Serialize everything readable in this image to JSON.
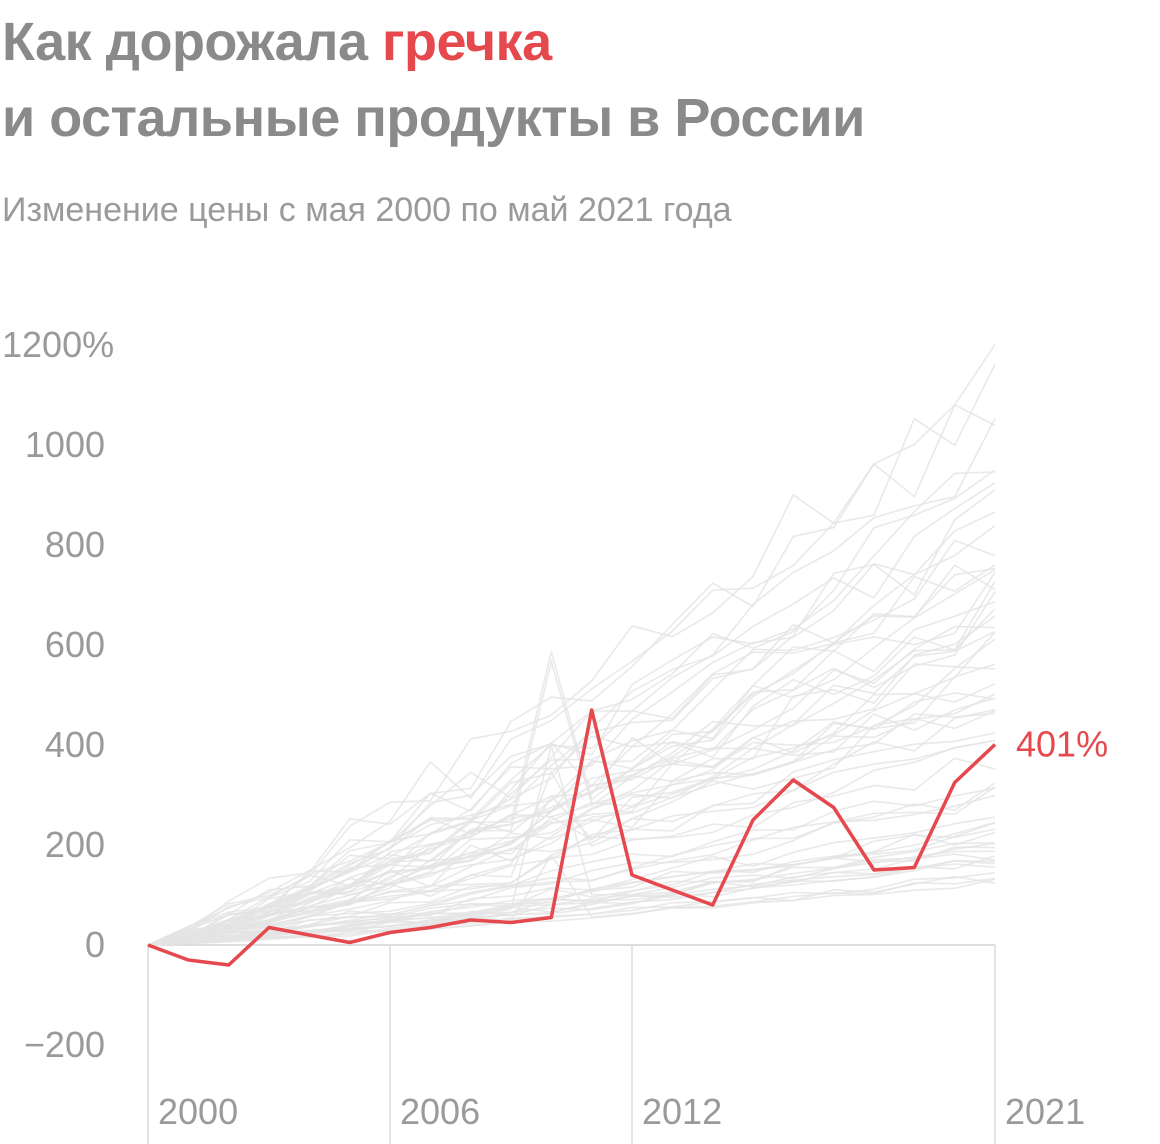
{
  "header": {
    "title_prefix": "Как дорожала",
    "title_highlight": "гречка",
    "title_line2": "и остальные продукты в России",
    "subtitle": "Изменение цены с мая 2000 по май 2021 года"
  },
  "colors": {
    "highlight": "#e5484d",
    "background_lines": "#e3e3e3",
    "text": "#8a8a8a"
  },
  "chart_data": {
    "type": "line",
    "title": "Как дорожала гречка и остальные продукты в России",
    "subtitle": "Изменение цены с мая 2000 по май 2021 года",
    "x": [
      2000,
      2001,
      2002,
      2003,
      2004,
      2005,
      2006,
      2007,
      2008,
      2009,
      2010,
      2011,
      2012,
      2013,
      2014,
      2015,
      2016,
      2017,
      2018,
      2019,
      2020,
      2021
    ],
    "xlim": [
      2000,
      2021
    ],
    "x_ticks": [
      "2000",
      "2006",
      "2012",
      "2021"
    ],
    "ylim": [
      -250,
      1200
    ],
    "y_ticks": [
      "1200%",
      "1000",
      "800",
      "600",
      "400",
      "200",
      "0",
      "−200"
    ],
    "y_tick_values": [
      1200,
      1000,
      800,
      600,
      400,
      200,
      0,
      -200
    ],
    "highlight_series": {
      "values": [
        0,
        -30,
        -40,
        35,
        20,
        5,
        25,
        35,
        50,
        45,
        55,
        470,
        140,
        110,
        80,
        250,
        330,
        275,
        150,
        155,
        325,
        401
      ],
      "end_label": "401%"
    },
    "background_series_count": 60,
    "background_series_range_2021": [
      120,
      1140
    ],
    "grid": "vertical lines at 2000, 2006, 2012, 2021; baseline at 0"
  }
}
